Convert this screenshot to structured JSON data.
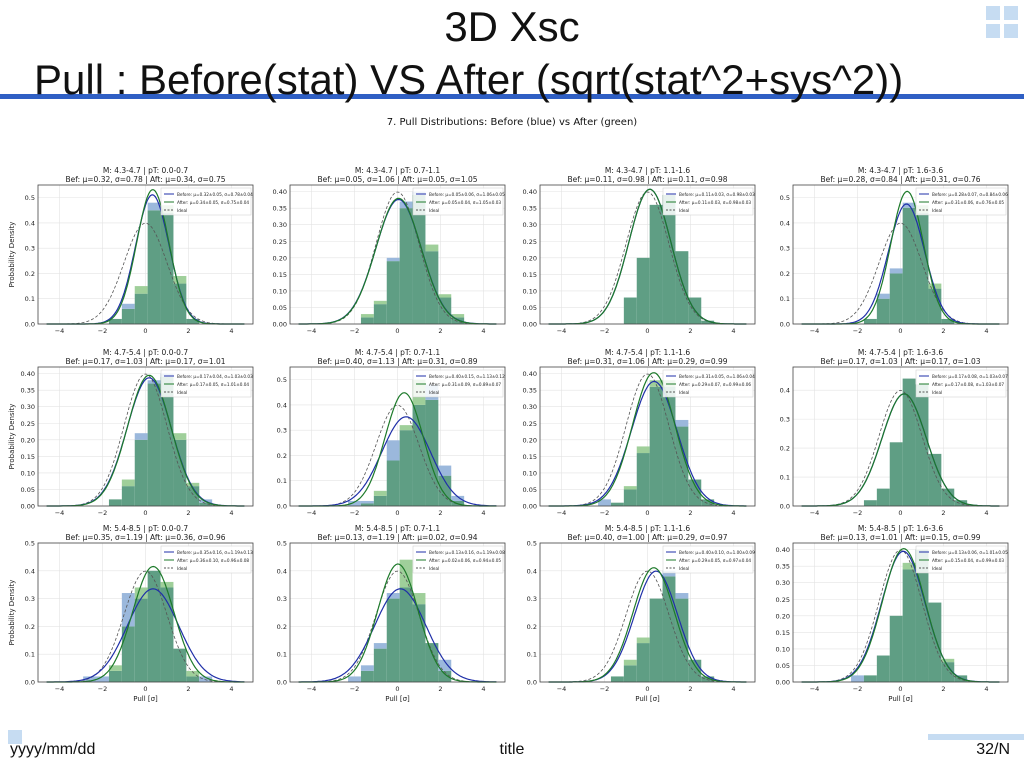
{
  "slide": {
    "title_line1": "3D Xsc",
    "title_line2": "Pull : Before(stat) VS After (sqrt(stat^2+sys^2))",
    "figure_title": "7. Pull Distributions: Before (blue) vs After (green)",
    "footer_left": "yyyy/mm/dd",
    "footer_center": "title",
    "footer_right": "32/N"
  },
  "colors": {
    "accent": "#2f5fc4",
    "before_fill": "#9bb8dc",
    "after_fill": "#9fcf9a",
    "overlap_fill": "#5f9e84",
    "before_line": "#1f2fa8",
    "after_line": "#1d7a2a",
    "ideal_line": "#555555"
  },
  "chart_data": [
    {
      "type": "bar",
      "title": "M: 4.3-4.7 | pT: 0.0-0.7",
      "subtitle": "Bef: μ=0.32, σ=0.78 | Aft: μ=0.34, σ=0.75",
      "ylabel": "Probability Density",
      "xlabel": "",
      "ylim": [
        0,
        0.55
      ],
      "yticks": [
        "0.0",
        "0.1",
        "0.2",
        "0.3",
        "0.4",
        "0.5"
      ],
      "xticks": [
        "−4",
        "−2",
        "0",
        "2",
        "4"
      ],
      "legend_before": "Before: μ=0.32±0.05, σ=0.78±0.04",
      "legend_after": "After: μ=0.34±0.05, σ=0.75±0.04",
      "legend_ideal": "Ideal",
      "before": {
        "mu": 0.32,
        "sigma": 0.78
      },
      "after": {
        "mu": 0.34,
        "sigma": 0.75
      },
      "hist_before": [
        0,
        0,
        0,
        0.02,
        0.08,
        0.12,
        0.48,
        0.44,
        0.16,
        0.02,
        0,
        0
      ],
      "hist_after": [
        0,
        0,
        0,
        0.02,
        0.06,
        0.15,
        0.45,
        0.47,
        0.19,
        0.02,
        0,
        0
      ]
    },
    {
      "type": "bar",
      "title": "M: 4.3-4.7 | pT: 0.7-1.1",
      "subtitle": "Bef: μ=0.05, σ=1.06 | Aft: μ=0.05, σ=1.05",
      "ylabel": "",
      "xlabel": "",
      "ylim": [
        0,
        0.42
      ],
      "yticks": [
        "0.00",
        "0.05",
        "0.10",
        "0.15",
        "0.20",
        "0.25",
        "0.30",
        "0.35",
        "0.40"
      ],
      "xticks": [
        "−4",
        "−2",
        "0",
        "2",
        "4"
      ],
      "legend_before": "Before: μ=0.05±0.06, σ=1.06±0.05",
      "legend_after": "After: μ=0.05±0.04, σ=1.05±0.03",
      "legend_ideal": "Ideal",
      "before": {
        "mu": 0.05,
        "sigma": 1.06
      },
      "after": {
        "mu": 0.05,
        "sigma": 1.05
      },
      "hist_before": [
        0,
        0,
        0,
        0.02,
        0.06,
        0.2,
        0.37,
        0.4,
        0.22,
        0.08,
        0.02,
        0
      ],
      "hist_after": [
        0,
        0,
        0,
        0.03,
        0.07,
        0.19,
        0.35,
        0.39,
        0.24,
        0.09,
        0.03,
        0
      ]
    },
    {
      "type": "bar",
      "title": "M: 4.3-4.7 | pT: 1.1-1.6",
      "subtitle": "Bef: μ=0.11, σ=0.98 | Aft: μ=0.11, σ=0.98",
      "ylabel": "",
      "xlabel": "",
      "ylim": [
        0,
        0.42
      ],
      "yticks": [
        "0.00",
        "0.05",
        "0.10",
        "0.15",
        "0.20",
        "0.25",
        "0.30",
        "0.35",
        "0.40"
      ],
      "xticks": [
        "−4",
        "−2",
        "0",
        "2",
        "4"
      ],
      "legend_before": "Before: μ=0.11±0.03, σ=0.98±0.03",
      "legend_after": "After: μ=0.11±0.03, σ=0.98±0.03",
      "legend_ideal": "Ideal",
      "before": {
        "mu": 0.11,
        "sigma": 0.98
      },
      "after": {
        "mu": 0.11,
        "sigma": 0.98
      },
      "hist_before": [
        0,
        0,
        0,
        0,
        0.08,
        0.2,
        0.36,
        0.39,
        0.22,
        0.08,
        0.01,
        0
      ],
      "hist_after": [
        0,
        0,
        0,
        0,
        0.08,
        0.2,
        0.36,
        0.39,
        0.22,
        0.08,
        0.01,
        0
      ]
    },
    {
      "type": "bar",
      "title": "M: 4.3-4.7 | pT: 1.6-3.6",
      "subtitle": "Bef: μ=0.28, σ=0.84 | Aft: μ=0.31, σ=0.76",
      "ylabel": "",
      "xlabel": "",
      "ylim": [
        0,
        0.55
      ],
      "yticks": [
        "0.0",
        "0.1",
        "0.2",
        "0.3",
        "0.4",
        "0.5"
      ],
      "xticks": [
        "−4",
        "−2",
        "0",
        "2",
        "4"
      ],
      "legend_before": "Before: μ=0.28±0.07, σ=0.84±0.06",
      "legend_after": "After: μ=0.31±0.06, σ=0.76±0.05",
      "legend_ideal": "Ideal",
      "before": {
        "mu": 0.28,
        "sigma": 0.84
      },
      "after": {
        "mu": 0.31,
        "sigma": 0.76
      },
      "hist_before": [
        0,
        0,
        0,
        0.02,
        0.12,
        0.22,
        0.48,
        0.44,
        0.14,
        0.02,
        0,
        0
      ],
      "hist_after": [
        0,
        0,
        0,
        0.02,
        0.1,
        0.2,
        0.46,
        0.47,
        0.16,
        0.02,
        0,
        0
      ]
    },
    {
      "type": "bar",
      "title": "M: 4.7-5.4 | pT: 0.0-0.7",
      "subtitle": "Bef: μ=0.17, σ=1.03 | Aft: μ=0.17, σ=1.01",
      "ylabel": "Probability Density",
      "xlabel": "",
      "ylim": [
        0,
        0.42
      ],
      "yticks": [
        "0.00",
        "0.05",
        "0.10",
        "0.15",
        "0.20",
        "0.25",
        "0.30",
        "0.35",
        "0.40"
      ],
      "xticks": [
        "−4",
        "−2",
        "0",
        "2",
        "4"
      ],
      "legend_before": "Before: μ=0.17±0.04, σ=1.03±0.03",
      "legend_after": "After: μ=0.17±0.05, σ=1.01±0.04",
      "legend_ideal": "Ideal",
      "before": {
        "mu": 0.17,
        "sigma": 1.03
      },
      "after": {
        "mu": 0.17,
        "sigma": 1.01
      },
      "hist_before": [
        0,
        0,
        0,
        0.02,
        0.06,
        0.22,
        0.38,
        0.4,
        0.2,
        0.06,
        0.02,
        0
      ],
      "hist_after": [
        0,
        0,
        0,
        0.02,
        0.08,
        0.2,
        0.37,
        0.39,
        0.22,
        0.07,
        0.01,
        0
      ]
    },
    {
      "type": "bar",
      "title": "M: 4.7-5.4 | pT: 0.7-1.1",
      "subtitle": "Bef: μ=0.40, σ=1.13 | Aft: μ=0.31, σ=0.89",
      "ylabel": "",
      "xlabel": "",
      "ylim": [
        0,
        0.55
      ],
      "yticks": [
        "0.0",
        "0.1",
        "0.2",
        "0.3",
        "0.4",
        "0.5"
      ],
      "xticks": [
        "−4",
        "−2",
        "0",
        "2",
        "4"
      ],
      "legend_before": "Before: μ=0.40±0.15, σ=1.13±0.12",
      "legend_after": "After: μ=0.31±0.09, σ=0.89±0.07",
      "legend_ideal": "Ideal",
      "before": {
        "mu": 0.4,
        "sigma": 1.13
      },
      "after": {
        "mu": 0.31,
        "sigma": 0.89
      },
      "hist_before": [
        0,
        0,
        0.02,
        0.02,
        0.04,
        0.26,
        0.3,
        0.4,
        0.48,
        0.16,
        0.04,
        0
      ],
      "hist_after": [
        0,
        0,
        0,
        0.01,
        0.06,
        0.18,
        0.32,
        0.5,
        0.42,
        0.12,
        0.02,
        0
      ]
    },
    {
      "type": "bar",
      "title": "M: 4.7-5.4 | pT: 1.1-1.6",
      "subtitle": "Bef: μ=0.31, σ=1.06 | Aft: μ=0.29, σ=0.99",
      "ylabel": "",
      "xlabel": "",
      "ylim": [
        0,
        0.42
      ],
      "yticks": [
        "0.00",
        "0.05",
        "0.10",
        "0.15",
        "0.20",
        "0.25",
        "0.30",
        "0.35",
        "0.40"
      ],
      "xticks": [
        "−4",
        "−2",
        "0",
        "2",
        "4"
      ],
      "legend_before": "Before: μ=0.31±0.05, σ=1.06±0.04",
      "legend_after": "After: μ=0.29±0.07, σ=0.99±0.06",
      "legend_ideal": "Ideal",
      "before": {
        "mu": 0.31,
        "sigma": 1.06
      },
      "after": {
        "mu": 0.29,
        "sigma": 0.99
      },
      "hist_before": [
        0,
        0,
        0.02,
        0.01,
        0.05,
        0.16,
        0.36,
        0.36,
        0.26,
        0.08,
        0.02,
        0
      ],
      "hist_after": [
        0,
        0,
        0,
        0.01,
        0.06,
        0.18,
        0.38,
        0.38,
        0.24,
        0.08,
        0.02,
        0
      ]
    },
    {
      "type": "bar",
      "title": "M: 4.7-5.4 | pT: 1.6-3.6",
      "subtitle": "Bef: μ=0.17, σ=1.03 | Aft: μ=0.17, σ=1.03",
      "ylabel": "",
      "xlabel": "",
      "ylim": [
        0,
        0.48
      ],
      "yticks": [
        "0.0",
        "0.1",
        "0.2",
        "0.3",
        "0.4"
      ],
      "xticks": [
        "−4",
        "−2",
        "0",
        "2",
        "4"
      ],
      "legend_before": "Before: μ=0.17±0.08, σ=1.03±0.07",
      "legend_after": "After: μ=0.17±0.08, σ=1.03±0.07",
      "legend_ideal": "Ideal",
      "before": {
        "mu": 0.17,
        "sigma": 1.03
      },
      "after": {
        "mu": 0.17,
        "sigma": 1.03
      },
      "hist_before": [
        0,
        0,
        0,
        0.02,
        0.06,
        0.22,
        0.44,
        0.42,
        0.18,
        0.06,
        0.02,
        0
      ],
      "hist_after": [
        0,
        0,
        0,
        0.02,
        0.06,
        0.22,
        0.44,
        0.42,
        0.18,
        0.06,
        0.02,
        0
      ]
    },
    {
      "type": "bar",
      "title": "M: 5.4-8.5 | pT: 0.0-0.7",
      "subtitle": "Bef: μ=0.35, σ=1.19 | Aft: μ=0.36, σ=0.96",
      "ylabel": "Probability Density",
      "xlabel": "Pull [σ]",
      "ylim": [
        0,
        0.5
      ],
      "yticks": [
        "0.0",
        "0.1",
        "0.2",
        "0.3",
        "0.4",
        "0.5"
      ],
      "xticks": [
        "−4",
        "−2",
        "0",
        "2",
        "4"
      ],
      "legend_before": "Before: μ=0.35±0.16, σ=1.19±0.13",
      "legend_after": "After: μ=0.36±0.10, σ=0.96±0.08",
      "legend_ideal": "Ideal",
      "before": {
        "mu": 0.35,
        "sigma": 1.19
      },
      "after": {
        "mu": 0.36,
        "sigma": 0.96
      },
      "hist_before": [
        0,
        0.02,
        0.02,
        0.04,
        0.32,
        0.3,
        0.4,
        0.34,
        0.12,
        0.02,
        0.02,
        0
      ],
      "hist_after": [
        0,
        0,
        0,
        0.06,
        0.2,
        0.34,
        0.4,
        0.36,
        0.12,
        0.04,
        0,
        0
      ]
    },
    {
      "type": "bar",
      "title": "M: 5.4-8.5 | pT: 0.7-1.1",
      "subtitle": "Bef: μ=0.13, σ=1.19 | Aft: μ=0.02, σ=0.94",
      "ylabel": "",
      "xlabel": "Pull [σ]",
      "ylim": [
        0,
        0.5
      ],
      "yticks": [
        "0.0",
        "0.1",
        "0.2",
        "0.3",
        "0.4",
        "0.5"
      ],
      "xticks": [
        "−4",
        "−2",
        "0",
        "2",
        "4"
      ],
      "legend_before": "Before: μ=0.13±0.16, σ=1.19±0.08",
      "legend_after": "After: μ=0.02±0.06, σ=0.94±0.05",
      "legend_ideal": "Ideal",
      "before": {
        "mu": 0.13,
        "sigma": 1.19
      },
      "after": {
        "mu": 0.02,
        "sigma": 0.94
      },
      "hist_before": [
        0,
        0,
        0.02,
        0.06,
        0.14,
        0.32,
        0.34,
        0.28,
        0.14,
        0.08,
        0,
        0
      ],
      "hist_after": [
        0,
        0,
        0,
        0.04,
        0.12,
        0.3,
        0.44,
        0.32,
        0.14,
        0.04,
        0,
        0
      ]
    },
    {
      "type": "bar",
      "title": "M: 5.4-8.5 | pT: 1.1-1.6",
      "subtitle": "Bef: μ=0.40, σ=1.00 | Aft: μ=0.29, σ=0.97",
      "ylabel": "",
      "xlabel": "Pull [σ]",
      "ylim": [
        0,
        0.5
      ],
      "yticks": [
        "0.0",
        "0.1",
        "0.2",
        "0.3",
        "0.4",
        "0.5"
      ],
      "xticks": [
        "−4",
        "−2",
        "0",
        "2",
        "4"
      ],
      "legend_before": "Before: μ=0.40±0.10, σ=1.00±0.09",
      "legend_after": "After: μ=0.29±0.05, σ=0.97±0.04",
      "legend_ideal": "Ideal",
      "before": {
        "mu": 0.4,
        "sigma": 1.0
      },
      "after": {
        "mu": 0.29,
        "sigma": 0.97
      },
      "hist_before": [
        0,
        0,
        0,
        0.02,
        0.06,
        0.14,
        0.3,
        0.4,
        0.32,
        0.08,
        0.02,
        0
      ],
      "hist_after": [
        0,
        0,
        0,
        0.02,
        0.08,
        0.16,
        0.3,
        0.38,
        0.3,
        0.08,
        0.02,
        0
      ]
    },
    {
      "type": "bar",
      "title": "M: 5.4-8.5 | pT: 1.6-3.6",
      "subtitle": "Bef: μ=0.13, σ=1.01 | Aft: μ=0.15, σ=0.99",
      "ylabel": "",
      "xlabel": "Pull [σ]",
      "ylim": [
        0,
        0.42
      ],
      "yticks": [
        "0.00",
        "0.05",
        "0.10",
        "0.15",
        "0.20",
        "0.25",
        "0.30",
        "0.35",
        "0.40"
      ],
      "xticks": [
        "−4",
        "−2",
        "0",
        "2",
        "4"
      ],
      "legend_before": "Before: μ=0.13±0.06, σ=1.01±0.05",
      "legend_after": "After: μ=0.15±0.04, σ=0.99±0.03",
      "legend_ideal": "Ideal",
      "before": {
        "mu": 0.13,
        "sigma": 1.01
      },
      "after": {
        "mu": 0.15,
        "sigma": 0.99
      },
      "hist_before": [
        0,
        0,
        0.02,
        0.02,
        0.08,
        0.2,
        0.34,
        0.4,
        0.24,
        0.06,
        0.02,
        0
      ],
      "hist_after": [
        0,
        0,
        0,
        0.02,
        0.08,
        0.2,
        0.36,
        0.4,
        0.24,
        0.07,
        0.02,
        0
      ]
    }
  ]
}
